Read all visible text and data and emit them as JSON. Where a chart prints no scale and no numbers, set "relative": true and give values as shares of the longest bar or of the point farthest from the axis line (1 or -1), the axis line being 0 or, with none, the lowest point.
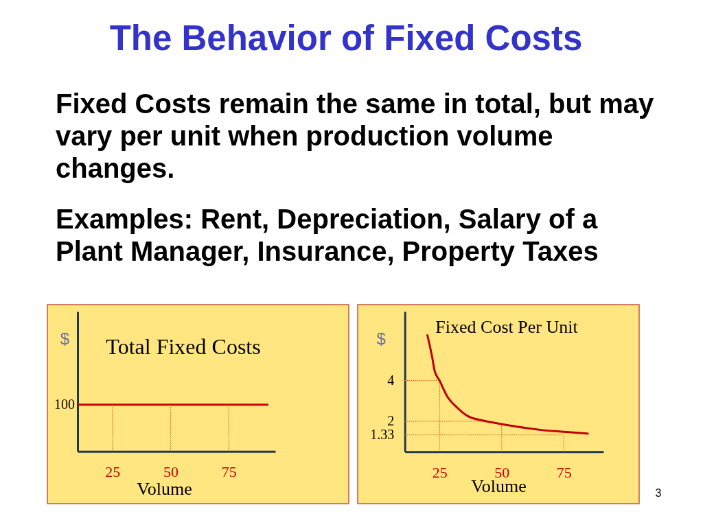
{
  "chart_data": [
    {
      "type": "other",
      "title": "The Behavior of Fixed Costs",
      "annotations": [
        "Fixed Costs remain the same in total, but may vary per unit when production volume changes.",
        "Examples: Rent, Depreciation, Salary of a Plant Manager, Insurance, Property Taxes",
        "3"
      ]
    },
    {
      "type": "line",
      "title": "Total Fixed Costs",
      "xlabel": "Volume",
      "ylabel": "$",
      "relative": true,
      "xlim": [
        10,
        95
      ],
      "xticks": [
        25,
        50,
        75
      ],
      "line_style": "solid",
      "annotations": [
        {
          "text": "100",
          "x": 10,
          "y": 1
        }
      ],
      "series": [
        {
          "color": "#cc0000",
          "x": [
            10,
            92
          ],
          "values": [
            1,
            1
          ]
        },
        {
          "color": "#dd6a2a",
          "line_style": "dotted",
          "x": [
            25,
            25
          ],
          "values": [
            0,
            1
          ]
        },
        {
          "color": "#dd6a2a",
          "line_style": "dotted",
          "x": [
            50,
            50
          ],
          "values": [
            0,
            1
          ]
        },
        {
          "color": "#dd6a2a",
          "line_style": "dotted",
          "x": [
            75,
            75
          ],
          "values": [
            0,
            1
          ]
        }
      ]
    },
    {
      "type": "line",
      "title": "Fixed Cost Per Unit",
      "xlabel": "Volume",
      "ylabel": "$",
      "xlim": [
        11,
        91
      ],
      "ylim": [
        0.5,
        7.4
      ],
      "xticks": [
        25,
        50,
        75
      ],
      "yticks": [
        4,
        2,
        1.33
      ],
      "line_style": "solid",
      "series": [
        {
          "color": "#dd6a2a",
          "line_style": "dotted",
          "x": [
            11,
            25
          ],
          "values": [
            4,
            4
          ]
        },
        {
          "color": "#dd6a2a",
          "line_style": "dotted",
          "x": [
            25,
            25
          ],
          "values": [
            0.5,
            4
          ]
        },
        {
          "color": "#dd6a2a",
          "line_style": "dotted",
          "x": [
            11,
            43
          ],
          "values": [
            2,
            2
          ]
        },
        {
          "color": "#dd6a2a",
          "line_style": "dotted",
          "x": [
            50,
            50
          ],
          "values": [
            0.5,
            1.9
          ]
        },
        {
          "color": "#dd6a2a",
          "line_style": "dotted",
          "x": [
            11,
            75
          ],
          "values": [
            1.33,
            1.33
          ]
        },
        {
          "color": "#dd6a2a",
          "line_style": "dotted",
          "x": [
            75,
            75
          ],
          "values": [
            0.5,
            1.33
          ]
        },
        {
          "color": "#c00000",
          "x": [
            20,
            22,
            23,
            25,
            28,
            32,
            36,
            43,
            49,
            57,
            66,
            75,
            85
          ],
          "values": [
            6.27,
            5.16,
            4.48,
            4,
            3.24,
            2.68,
            2.28,
            2.02,
            1.88,
            1.72,
            1.57,
            1.48,
            1.39
          ]
        }
      ]
    }
  ]
}
